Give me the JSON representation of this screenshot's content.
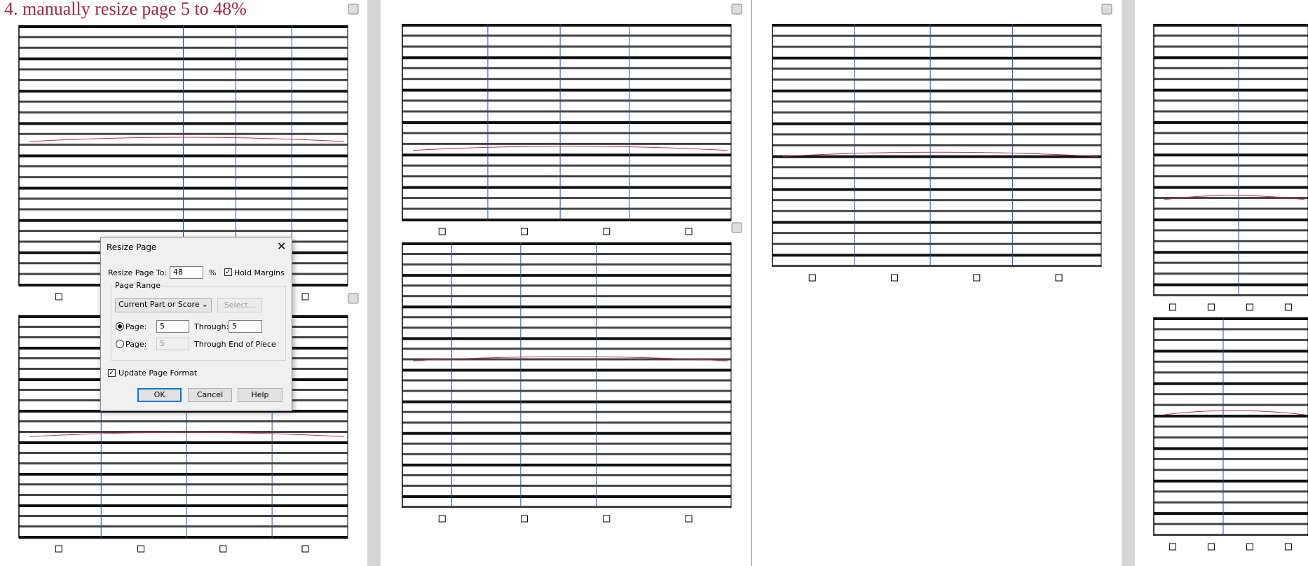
{
  "header": {
    "title": "4. manually resize page 5 to 48%"
  },
  "dialog": {
    "title": "Resize Page",
    "resize_label": "Resize Page To:",
    "resize_value": "48",
    "percent": "%",
    "hold_margins": "Hold Margins",
    "page_range": "Page Range",
    "range_select": "Current Part or Score",
    "select_button": "Select...",
    "page_label_1": "Page:",
    "page_from": "5",
    "through_label": "Through:",
    "page_through": "5",
    "page_label_2": "Page:",
    "page_disabled": "5",
    "through_end": "Through End of Piece",
    "update_format": "Update Page Format",
    "buttons": [
      "OK",
      "Cancel",
      "Help"
    ]
  }
}
